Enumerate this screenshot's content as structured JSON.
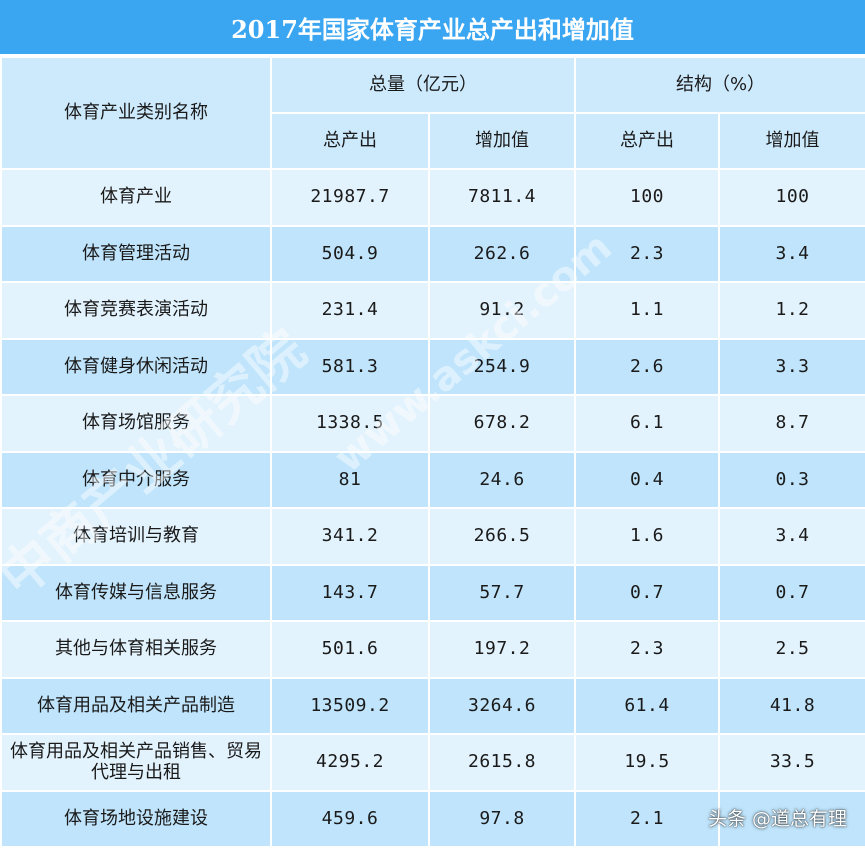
{
  "title": "2017年国家体育产业总产出和增加值",
  "header": {
    "category_label": "体育产业类别名称",
    "group_total": "总量（亿元）",
    "group_structure": "结构（%）",
    "col_output": "总产出",
    "col_value_added": "增加值",
    "col_output_pct": "总产出",
    "col_value_added_pct": "增加值"
  },
  "rows": [
    {
      "name": "体育产业",
      "output": "21987.7",
      "value_added": "7811.4",
      "output_pct": "100",
      "value_added_pct": "100"
    },
    {
      "name": "体育管理活动",
      "output": "504.9",
      "value_added": "262.6",
      "output_pct": "2.3",
      "value_added_pct": "3.4"
    },
    {
      "name": "体育竞赛表演活动",
      "output": "231.4",
      "value_added": "91.2",
      "output_pct": "1.1",
      "value_added_pct": "1.2"
    },
    {
      "name": "体育健身休闲活动",
      "output": "581.3",
      "value_added": "254.9",
      "output_pct": "2.6",
      "value_added_pct": "3.3"
    },
    {
      "name": "体育场馆服务",
      "output": "1338.5",
      "value_added": "678.2",
      "output_pct": "6.1",
      "value_added_pct": "8.7"
    },
    {
      "name": "体育中介服务",
      "output": "81",
      "value_added": "24.6",
      "output_pct": "0.4",
      "value_added_pct": "0.3"
    },
    {
      "name": "体育培训与教育",
      "output": "341.2",
      "value_added": "266.5",
      "output_pct": "1.6",
      "value_added_pct": "3.4"
    },
    {
      "name": "体育传媒与信息服务",
      "output": "143.7",
      "value_added": "57.7",
      "output_pct": "0.7",
      "value_added_pct": "0.7"
    },
    {
      "name": "其他与体育相关服务",
      "output": "501.6",
      "value_added": "197.2",
      "output_pct": "2.3",
      "value_added_pct": "2.5"
    },
    {
      "name": "体育用品及相关产品制造",
      "output": "13509.2",
      "value_added": "3264.6",
      "output_pct": "61.4",
      "value_added_pct": "41.8"
    },
    {
      "name": "体育用品及相关产品销售、贸易代理与出租",
      "output": "4295.2",
      "value_added": "2615.8",
      "output_pct": "19.5",
      "value_added_pct": "33.5"
    },
    {
      "name": "体育场地设施建设",
      "output": "459.6",
      "value_added": "97.8",
      "output_pct": "2.1",
      "value_added_pct": ""
    }
  ],
  "watermark": {
    "brand": "中商产业研究院",
    "site": "www.askci.com"
  },
  "credit": "头条 @道总有理",
  "colors": {
    "title_bg": "#3aa6f2",
    "header_bg": "#cdeafc",
    "row_light": "#e3f3fd",
    "row_dark": "#bfe4fb"
  }
}
